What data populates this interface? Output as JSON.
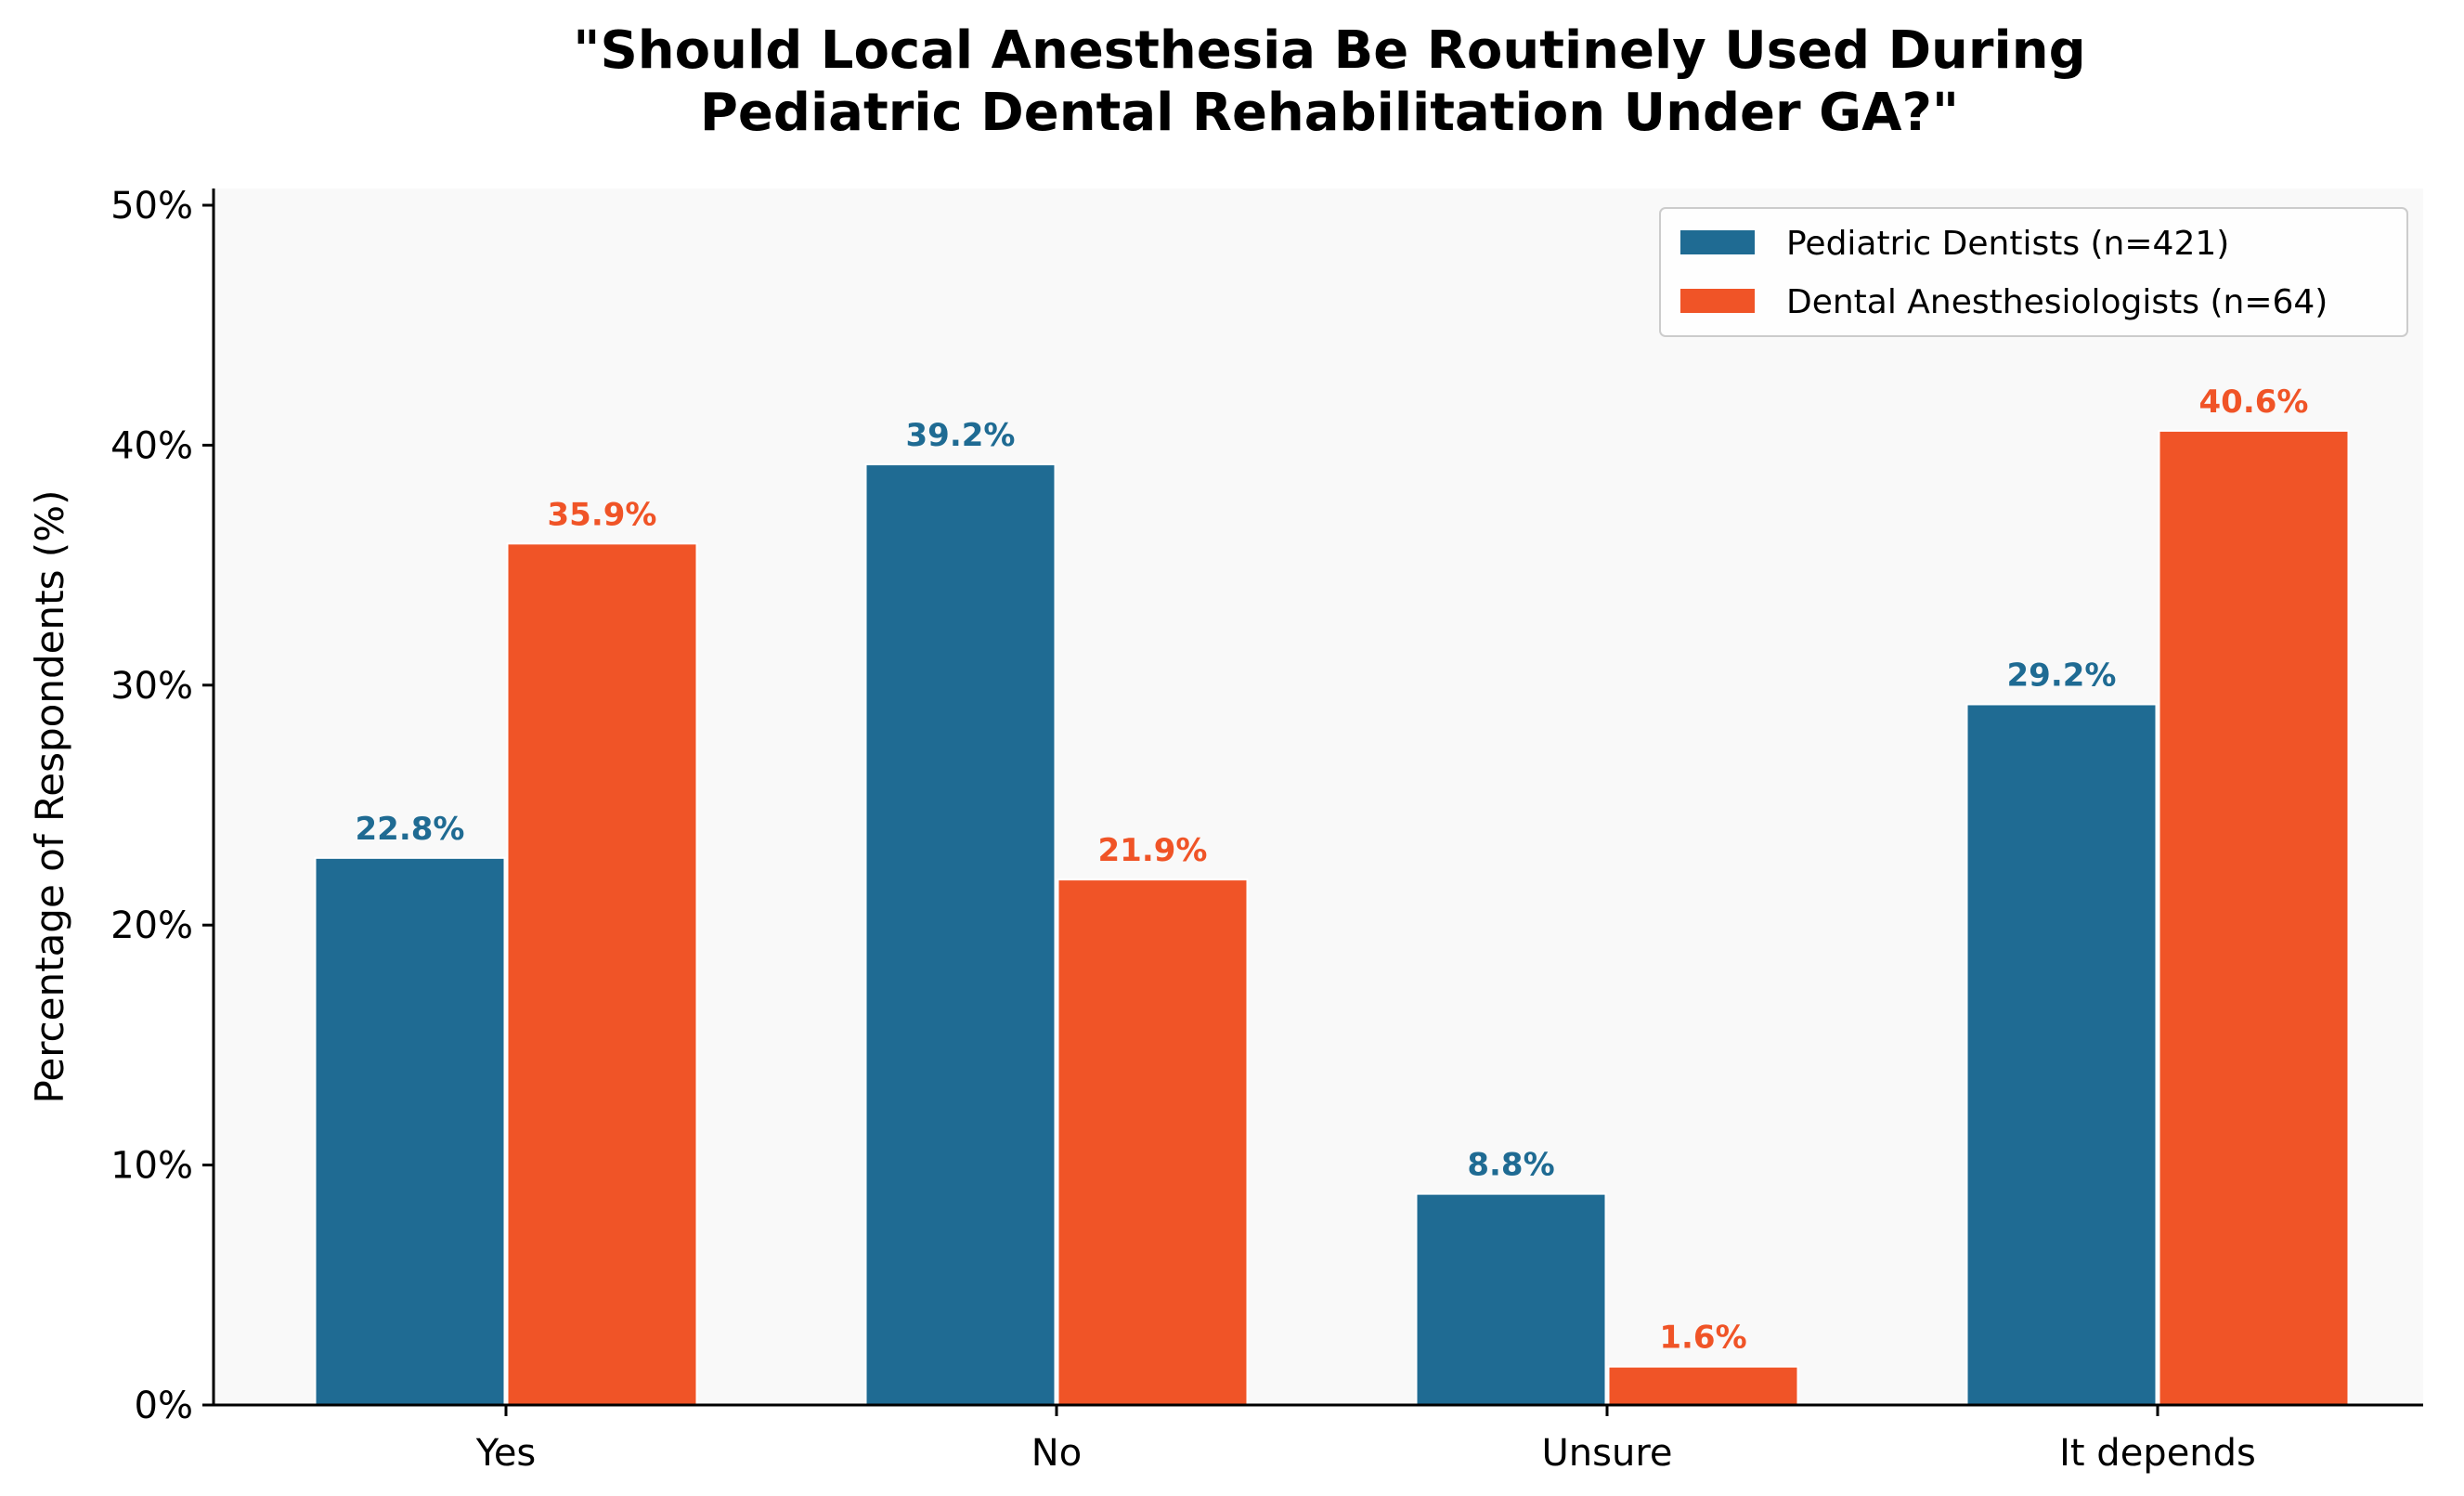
{
  "chart_data": {
    "type": "bar",
    "title_lines": [
      "\"Should Local Anesthesia Be Routinely Used During",
      "Pediatric Dental Rehabilitation Under GA?\""
    ],
    "xlabel": "",
    "ylabel": "Percentage of Respondents (%)",
    "categories": [
      "Yes",
      "No",
      "Unsure",
      "It depends"
    ],
    "series": [
      {
        "name": "Pediatric Dentists (n=421)",
        "color": "#1f6b93",
        "values": [
          22.8,
          39.2,
          8.8,
          29.2
        ],
        "labels": [
          "22.8%",
          "39.2%",
          "8.8%",
          "29.2%"
        ]
      },
      {
        "name": "Dental Anesthesiologists (n=64)",
        "color": "#f05427",
        "values": [
          35.9,
          21.9,
          1.6,
          40.6
        ],
        "labels": [
          "35.9%",
          "21.9%",
          "1.6%",
          "40.6%"
        ]
      }
    ],
    "ylim": [
      0,
      50
    ],
    "yticks": [
      0,
      10,
      20,
      30,
      40,
      50
    ],
    "ytick_labels": [
      "0%",
      "10%",
      "20%",
      "30%",
      "40%",
      "50%"
    ],
    "grid": false,
    "legend_position": "top-right",
    "background": "#f9f9f9"
  }
}
